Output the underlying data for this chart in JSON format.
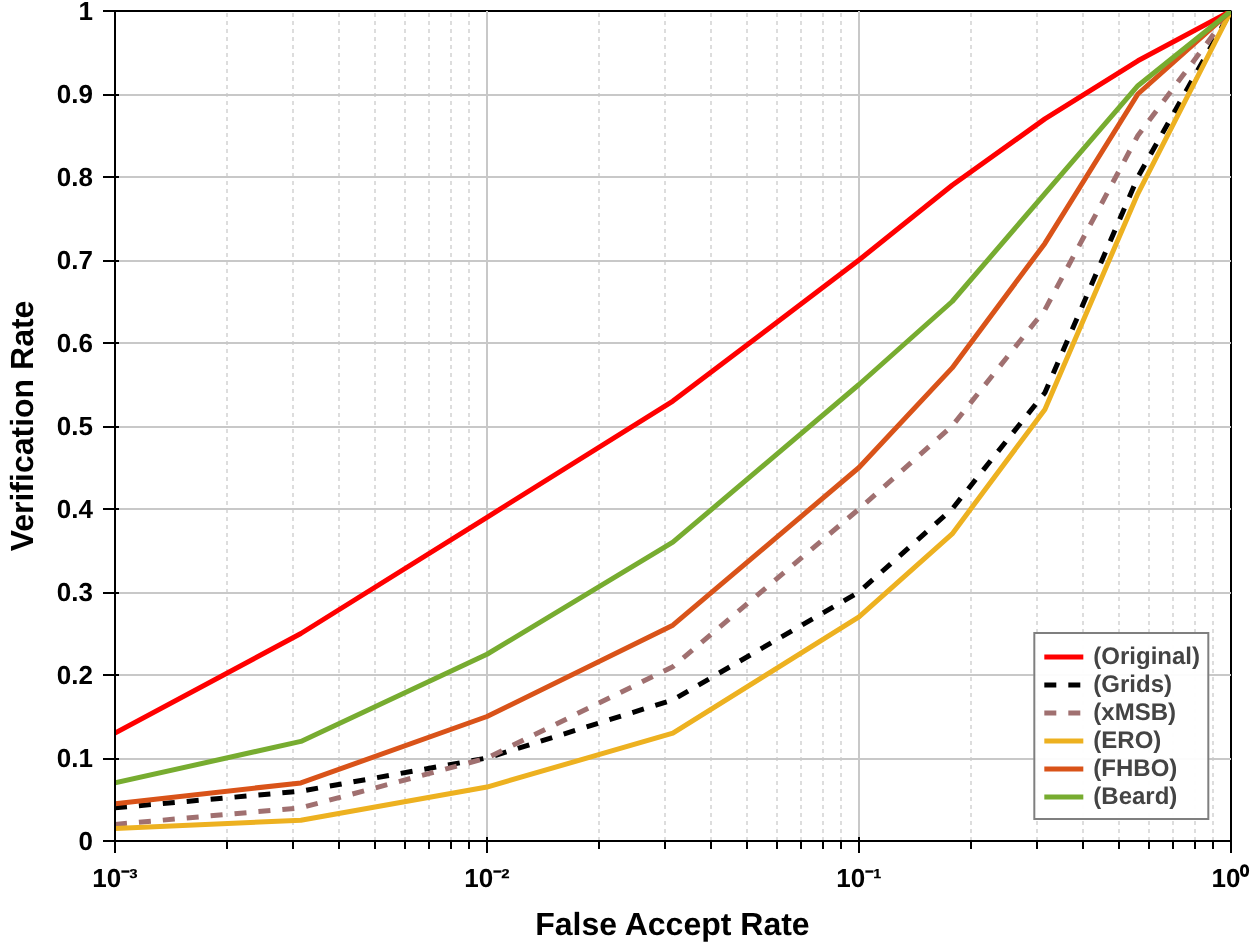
{
  "chart_data": {
    "type": "line",
    "xlabel": "False Accept Rate",
    "ylabel": "Verification Rate",
    "log": "x",
    "grid": true,
    "legend": "bottom right",
    "x": [
      0.001,
      0.00316,
      0.01,
      0.0316,
      0.1,
      0.178,
      0.316,
      0.562,
      1
    ],
    "xlim": [
      0.001,
      1
    ],
    "xticks": [
      {
        "value": 0.001,
        "label": "10⁻³"
      },
      {
        "value": 0.01,
        "label": "10⁻²"
      },
      {
        "value": 0.1,
        "label": "10⁻¹"
      },
      {
        "value": 1,
        "label": "10⁰"
      }
    ],
    "ylim": [
      0,
      1
    ],
    "yticks": [
      0,
      0.1,
      0.2,
      0.3,
      0.4,
      0.5,
      0.6,
      0.7,
      0.8,
      0.9,
      1
    ],
    "series": [
      {
        "name": "(Original)",
        "color": "#ff0000",
        "line_style": "solid",
        "values": [
          0.13,
          0.25,
          0.39,
          0.53,
          0.7,
          0.79,
          0.87,
          0.94,
          1
        ]
      },
      {
        "name": "(Grids)",
        "color": "#000000",
        "line_style": "dashed",
        "values": [
          0.04,
          0.06,
          0.1,
          0.17,
          0.3,
          0.4,
          0.54,
          0.8,
          1
        ]
      },
      {
        "name": "(xMSB)",
        "color": "#a07070",
        "line_style": "dashed",
        "values": [
          0.02,
          0.04,
          0.1,
          0.21,
          0.4,
          0.5,
          0.64,
          0.85,
          1
        ]
      },
      {
        "name": "(ERO)",
        "color": "#edb120",
        "line_style": "solid",
        "values": [
          0.015,
          0.025,
          0.065,
          0.13,
          0.27,
          0.37,
          0.52,
          0.78,
          1
        ]
      },
      {
        "name": "(FHBO)",
        "color": "#d95319",
        "line_style": "solid",
        "values": [
          0.045,
          0.07,
          0.15,
          0.26,
          0.45,
          0.57,
          0.72,
          0.9,
          1
        ]
      },
      {
        "name": "(Beard)",
        "color": "#77ac30",
        "line_style": "solid",
        "values": [
          0.07,
          0.12,
          0.225,
          0.36,
          0.55,
          0.65,
          0.78,
          0.91,
          1
        ]
      }
    ]
  }
}
